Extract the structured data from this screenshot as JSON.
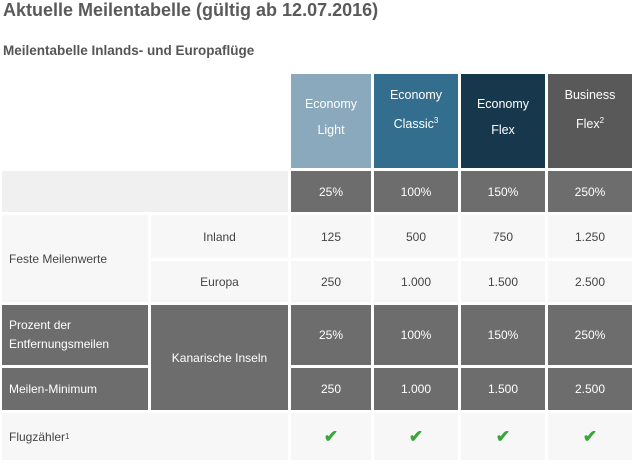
{
  "title": "Aktuelle Meilentabelle (gültig ab 12.07.2016)",
  "subtitle": "Meilentabelle Inlands- und Europaflüge",
  "columns": [
    {
      "line1": "Economy",
      "line2": "Light",
      "sup": "",
      "color": "#8aa9bd"
    },
    {
      "line1": "Economy",
      "line2": "Classic",
      "sup": "3",
      "color": "#336e8e"
    },
    {
      "line1": "Economy",
      "line2": "Flex",
      "sup": "",
      "color": "#17374d"
    },
    {
      "line1": "Business",
      "line2": "Flex",
      "sup": "2",
      "color": "#595959"
    }
  ],
  "percent_row": [
    "25%",
    "100%",
    "150%",
    "250%"
  ],
  "feste": {
    "label": "Feste Meilenwerte",
    "inland": {
      "label": "Inland",
      "values": [
        "125",
        "500",
        "750",
        "1.250"
      ]
    },
    "europa": {
      "label": "Europa",
      "values": [
        "250",
        "1.000",
        "1.500",
        "2.500"
      ]
    }
  },
  "kanaren": {
    "label": "Kanarische Inseln",
    "prozent": {
      "label": "Prozent der Entfernungsmeilen",
      "values": [
        "25%",
        "100%",
        "150%",
        "250%"
      ]
    },
    "minimum": {
      "label": "Meilen-Minimum",
      "values": [
        "250",
        "1.000",
        "1.500",
        "2.500"
      ]
    }
  },
  "flugzaehler": {
    "label": "Flugzähler",
    "sup": "1",
    "values": [
      "✔",
      "✔",
      "✔",
      "✔"
    ]
  }
}
